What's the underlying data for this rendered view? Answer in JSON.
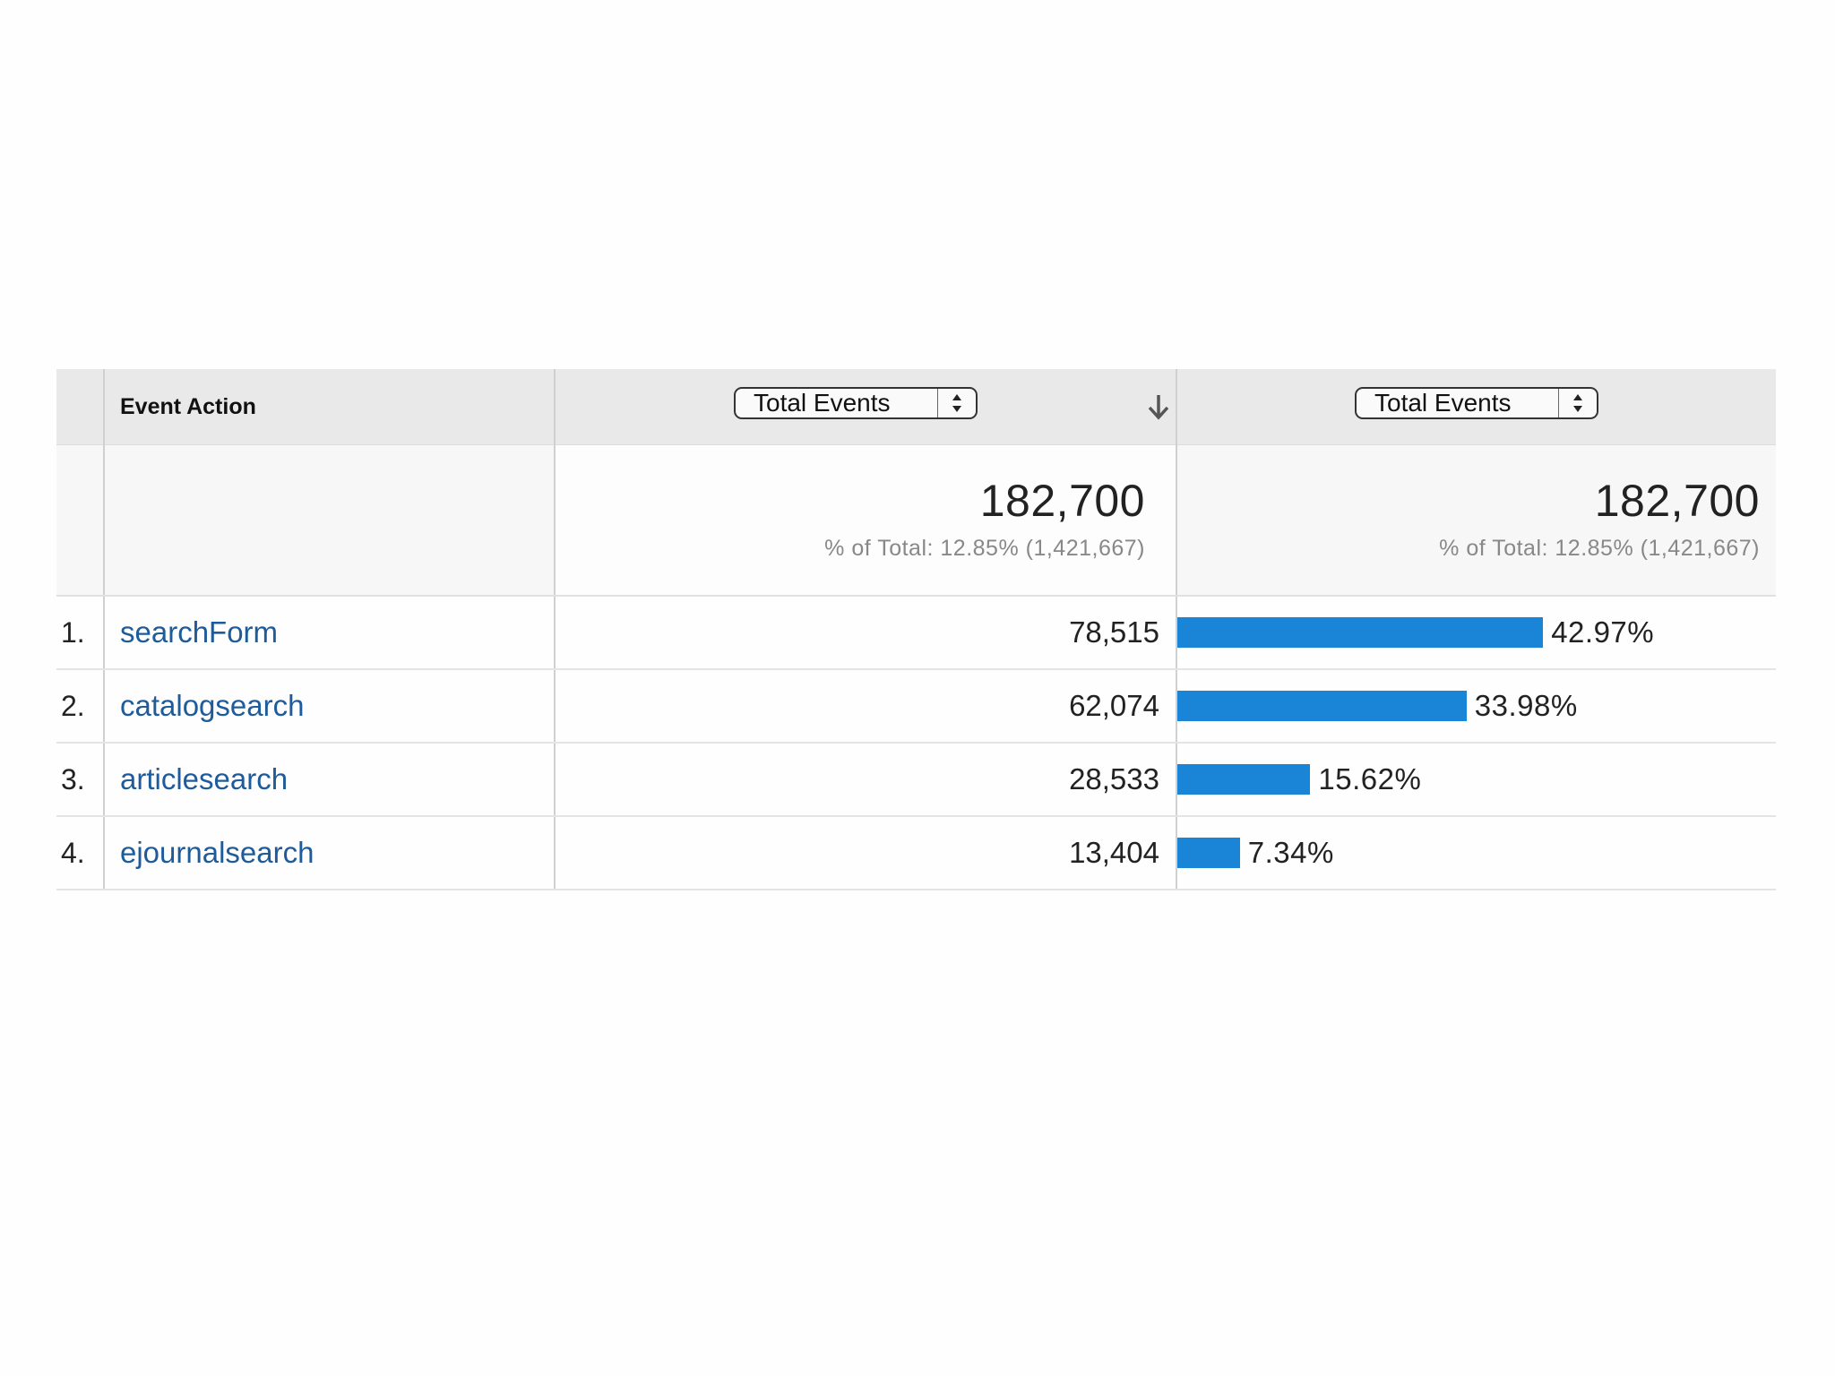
{
  "table": {
    "dimension_header": "Event Action",
    "metric_columns": [
      {
        "selector_label": "Total Events",
        "selector_icon": "updown-arrows-icon"
      },
      {
        "selector_label": "Total Events",
        "selector_icon": "updown-arrows-icon"
      }
    ],
    "sort_icon": "sort-descending-icon",
    "summary": [
      {
        "total": "182,700",
        "pct_of_total": "% of Total: 12.85% (1,421,667)"
      },
      {
        "total": "182,700",
        "pct_of_total": "% of Total: 12.85% (1,421,667)"
      }
    ],
    "rows": [
      {
        "index": "1.",
        "name": "searchForm",
        "value": "78,515",
        "share_label": "42.97%",
        "share": 42.97
      },
      {
        "index": "2.",
        "name": "catalogsearch",
        "value": "62,074",
        "share_label": "33.98%",
        "share": 33.98
      },
      {
        "index": "3.",
        "name": "articlesearch",
        "value": "28,533",
        "share_label": "15.62%",
        "share": 15.62
      },
      {
        "index": "4.",
        "name": "ejournalsearch",
        "value": "13,404",
        "share_label": "7.34%",
        "share": 7.34
      }
    ],
    "bar_color": "#1a85d6",
    "link_color": "#1e5b9a"
  }
}
